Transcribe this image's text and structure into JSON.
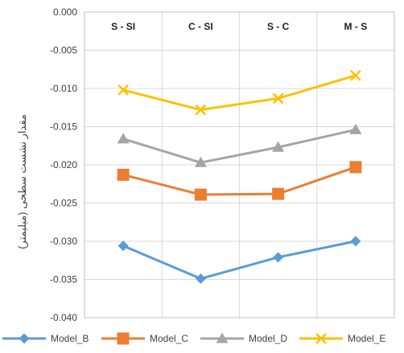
{
  "chart_data": {
    "type": "line",
    "title": "",
    "ylabel": "مقدار نشست سطحی (میلیمتر)",
    "xlabel": "",
    "categories": [
      "S - SI",
      "C - SI",
      "S - C",
      "M - S"
    ],
    "ylim": [
      -0.04,
      0.0
    ],
    "yticks": [
      "0.000",
      "-0.005",
      "-0.010",
      "-0.015",
      "-0.020",
      "-0.025",
      "-0.030",
      "-0.035",
      "-0.040"
    ],
    "category_axis_position": "top",
    "grid": true,
    "legend_position": "bottom",
    "series": [
      {
        "name": "Model_B",
        "color": "#5B9BD5",
        "marker": "diamond",
        "values": [
          -0.0306,
          -0.0349,
          -0.0321,
          -0.03
        ]
      },
      {
        "name": "Model_C",
        "color": "#ED7D31",
        "marker": "square",
        "values": [
          -0.0213,
          -0.0239,
          -0.0238,
          -0.0203
        ]
      },
      {
        "name": "Model_D",
        "color": "#A5A5A5",
        "marker": "triangle",
        "values": [
          -0.0166,
          -0.0197,
          -0.0177,
          -0.0154
        ]
      },
      {
        "name": "Model_E",
        "color": "#FFC000",
        "marker": "x",
        "values": [
          -0.0102,
          -0.0128,
          -0.0113,
          -0.0083
        ]
      }
    ]
  }
}
